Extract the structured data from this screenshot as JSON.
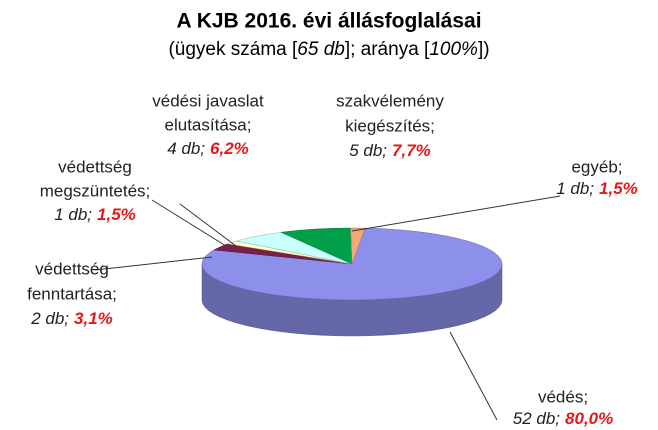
{
  "chart_data": {
    "type": "pie3d",
    "title": "A KJB 2016. évi állásfoglalásai",
    "subtitle": [
      "(ügyek száma [",
      "65 db",
      "]; aránya [",
      "100%",
      "])"
    ],
    "categories": [
      [
        "védés;"
      ],
      [
        "védettség",
        "fenntartása;"
      ],
      [
        "védettség",
        "megszüntetés;"
      ],
      [
        "védési javaslat",
        "elutasítása;"
      ],
      [
        "szakvélemény",
        "kiegészítés;"
      ],
      [
        "egyéb;"
      ]
    ],
    "values": [
      52,
      2,
      1,
      4,
      5,
      1
    ],
    "value_labels": [
      "52 db;",
      "2 db;",
      "1 db;",
      "4 db;",
      "5 db;",
      "1 db;"
    ],
    "percents": [
      80.0,
      3.1,
      1.5,
      6.2,
      7.7,
      1.5
    ],
    "percent_labels": [
      "80,0%",
      "3,1%",
      "1,5%",
      "6,2%",
      "7,7%",
      "1,5%"
    ],
    "colors": [
      "#8c90ea",
      "#7a1f4a",
      "#ffffc8",
      "#c8ffff",
      "#00a04a",
      "#f2a878"
    ]
  }
}
